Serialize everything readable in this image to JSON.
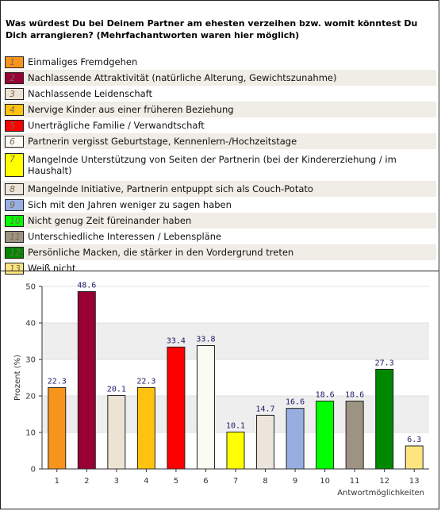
{
  "question": "Was würdest Du bei Deinem Partner am ehesten verzeihen bzw. womit könntest Du Dich arrangieren? (Mehrfachantworten waren hier möglich)",
  "legend": [
    {
      "num": "1",
      "label": "Einmaliges Fremdgehen",
      "color": "#f7941d"
    },
    {
      "num": "2",
      "label": "Nachlassende Attraktivität (natürliche Alterung, Gewichtszunahme)",
      "color": "#990033"
    },
    {
      "num": "3",
      "label": "Nachlassende Leidenschaft",
      "color": "#ede3d4"
    },
    {
      "num": "4",
      "label": "Nervige Kinder aus einer früheren Beziehung",
      "color": "#ffc20e"
    },
    {
      "num": "5",
      "label": "Unerträgliche Familie / Verwandtschaft",
      "color": "#ff0000"
    },
    {
      "num": "6",
      "label": "Partnerin vergisst Geburtstage, Kennenlern-/Hochzeitstage",
      "color": "#fbfaf3"
    },
    {
      "num": "7",
      "label": "Mangelnde Unterstützung von Seiten der Partnerin (bei der Kindererziehung / im Haushalt)",
      "color": "#ffff00"
    },
    {
      "num": "8",
      "label": "Mangelnde Initiative, Partnerin entpuppt sich als Couch-Potato",
      "color": "#ece5dc"
    },
    {
      "num": "9",
      "label": "Sich mit den Jahren weniger zu sagen haben",
      "color": "#97aee0"
    },
    {
      "num": "10",
      "label": "Nicht genug Zeit füreinander haben",
      "color": "#00ff00"
    },
    {
      "num": "11",
      "label": "Unterschiedliche Interessen / Lebenspläne",
      "color": "#9d9383"
    },
    {
      "num": "12",
      "label": "Persönliche Macken, die stärker in den Vordergrund treten",
      "color": "#008800"
    },
    {
      "num": "13",
      "label": "Weiß nicht",
      "color": "#ffe57f"
    }
  ],
  "chart_data": {
    "type": "bar",
    "categories": [
      "1",
      "2",
      "3",
      "4",
      "5",
      "6",
      "7",
      "8",
      "9",
      "10",
      "11",
      "12",
      "13"
    ],
    "values": [
      22.3,
      48.6,
      20.1,
      22.3,
      33.4,
      33.8,
      10.1,
      14.7,
      16.6,
      18.6,
      18.6,
      27.3,
      6.3
    ],
    "value_labels": [
      "22.3",
      "48.6",
      "20.1",
      "22.3",
      "33.4",
      "33.8",
      "10.1",
      "14.7",
      "16.6",
      "18.6",
      "18.6",
      "27.3",
      "6.3"
    ],
    "colors": [
      "#f7941d",
      "#990033",
      "#ede3d4",
      "#ffc20e",
      "#ff0000",
      "#fbfaf3",
      "#ffff00",
      "#ece5dc",
      "#97aee0",
      "#00ff00",
      "#9d9383",
      "#008800",
      "#ffe57f"
    ],
    "xlabel": "Antwortmöglichkeiten",
    "ylabel": "Prozent (%)",
    "ylim": [
      0,
      50
    ],
    "yticks": [
      0,
      10,
      20,
      30,
      40,
      50
    ],
    "grid": true
  }
}
